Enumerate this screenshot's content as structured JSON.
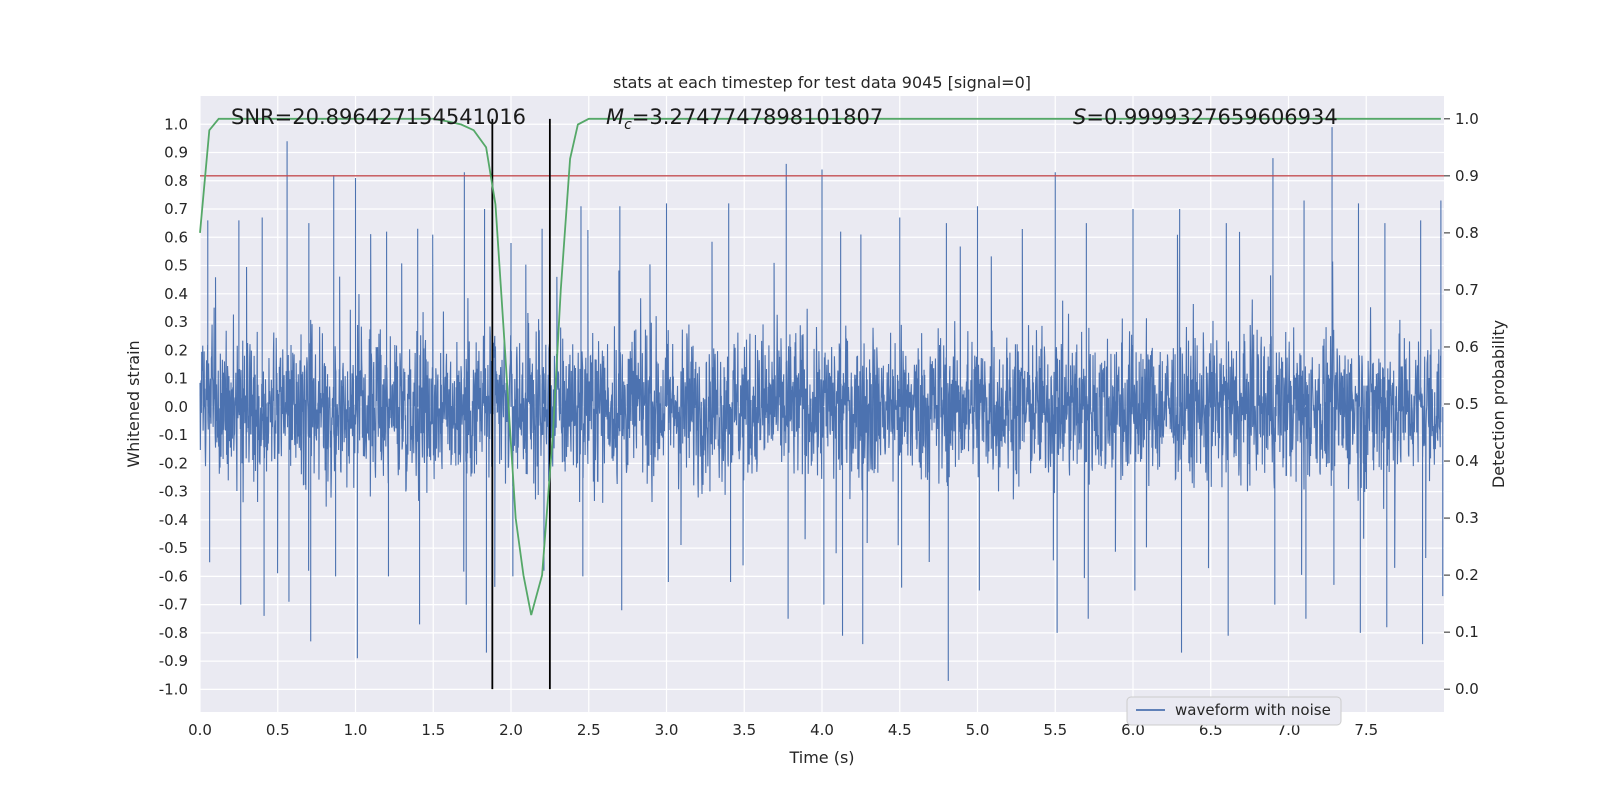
{
  "chart_data": {
    "type": "line",
    "title": "stats at each timestep for test data 9045 [signal=0]",
    "xlabel": "Time (s)",
    "ylabel_left": "Whitened strain",
    "ylabel_right": "Detection probability",
    "xlim": [
      0.0,
      8.0
    ],
    "ylim_left": [
      -1.08,
      1.1
    ],
    "ylim_right": [
      -0.04,
      1.04
    ],
    "x_ticks": [
      "0.0",
      "0.5",
      "1.0",
      "1.5",
      "2.0",
      "2.5",
      "3.0",
      "3.5",
      "4.0",
      "4.5",
      "5.0",
      "5.5",
      "6.0",
      "6.5",
      "7.0",
      "7.5"
    ],
    "y_left_ticks": [
      "1.0",
      "0.9",
      "0.8",
      "0.7",
      "0.6",
      "0.5",
      "0.4",
      "0.3",
      "0.2",
      "0.1",
      "0.0",
      "-0.1",
      "-0.2",
      "-0.3",
      "-0.4",
      "-0.5",
      "-0.6",
      "-0.7",
      "-0.8",
      "-0.9",
      "-1.0"
    ],
    "y_right_ticks": [
      "1.0",
      "0.9",
      "0.8",
      "0.7",
      "0.6",
      "0.5",
      "0.4",
      "0.3",
      "0.2",
      "0.1",
      "0.0"
    ],
    "grid": true,
    "annotations": {
      "snr": "SNR=20.896427154541016",
      "mc_symbol": "M",
      "mc_sub": "c",
      "mc_value": "=3.2747747898101807",
      "s_symbol": "S",
      "s_value": "=0.9999327659606934"
    },
    "legend": {
      "position": "bottom-right",
      "entries": [
        "waveform with noise"
      ]
    },
    "threshold": {
      "axis": "right",
      "value": 0.9,
      "color": "#c44e52"
    },
    "event_markers_x": [
      1.88,
      2.25
    ],
    "series": [
      {
        "name": "waveform with noise",
        "axis": "left",
        "color": "#4c72b0",
        "envelope_peaks": [
          [
            0.05,
            0.66,
            -0.55
          ],
          [
            0.25,
            0.66,
            -0.7
          ],
          [
            0.4,
            0.67,
            -0.74
          ],
          [
            0.56,
            0.94,
            -0.69
          ],
          [
            0.7,
            0.65,
            -0.83
          ],
          [
            0.86,
            0.82,
            -0.6
          ],
          [
            1.0,
            0.81,
            -0.89
          ],
          [
            1.2,
            0.62,
            -0.6
          ],
          [
            1.4,
            0.63,
            -0.77
          ],
          [
            1.7,
            0.83,
            -0.7
          ],
          [
            1.83,
            0.7,
            -0.87
          ],
          [
            2.0,
            0.58,
            -0.6
          ],
          [
            2.2,
            0.63,
            -0.58
          ],
          [
            2.45,
            0.71,
            -0.6
          ],
          [
            2.7,
            0.71,
            -0.72
          ],
          [
            3.0,
            0.72,
            -0.62
          ],
          [
            3.4,
            0.72,
            -0.62
          ],
          [
            3.77,
            0.86,
            -0.75
          ],
          [
            4.0,
            0.84,
            -0.7
          ],
          [
            4.12,
            0.62,
            -0.81
          ],
          [
            4.25,
            0.61,
            -0.84
          ],
          [
            4.5,
            0.67,
            -0.64
          ],
          [
            4.8,
            0.65,
            -0.97
          ],
          [
            5.0,
            0.71,
            -0.65
          ],
          [
            5.5,
            0.83,
            -0.8
          ],
          [
            5.7,
            0.65,
            -0.75
          ],
          [
            6.0,
            0.7,
            -0.65
          ],
          [
            6.3,
            0.7,
            -0.87
          ],
          [
            6.6,
            0.65,
            -0.81
          ],
          [
            6.9,
            0.88,
            -0.7
          ],
          [
            7.1,
            0.73,
            -0.75
          ],
          [
            7.28,
            0.99,
            -0.63
          ],
          [
            7.45,
            0.72,
            -0.8
          ],
          [
            7.62,
            0.65,
            -0.78
          ],
          [
            7.85,
            0.66,
            -0.84
          ],
          [
            7.98,
            0.73,
            -0.67
          ]
        ]
      },
      {
        "name": "detection probability",
        "axis": "right",
        "color": "#55a868",
        "x": [
          0.0,
          0.06,
          0.12,
          0.2,
          1.5,
          1.6,
          1.68,
          1.76,
          1.84,
          1.9,
          1.96,
          2.03,
          2.08,
          2.13,
          2.2,
          2.27,
          2.32,
          2.38,
          2.43,
          2.5,
          2.6,
          7.98
        ],
        "y": [
          0.8,
          0.98,
          1.0,
          1.0,
          1.0,
          0.995,
          0.99,
          0.98,
          0.95,
          0.85,
          0.6,
          0.3,
          0.2,
          0.13,
          0.2,
          0.45,
          0.7,
          0.93,
          0.99,
          1.0,
          1.0,
          1.0
        ]
      }
    ]
  }
}
